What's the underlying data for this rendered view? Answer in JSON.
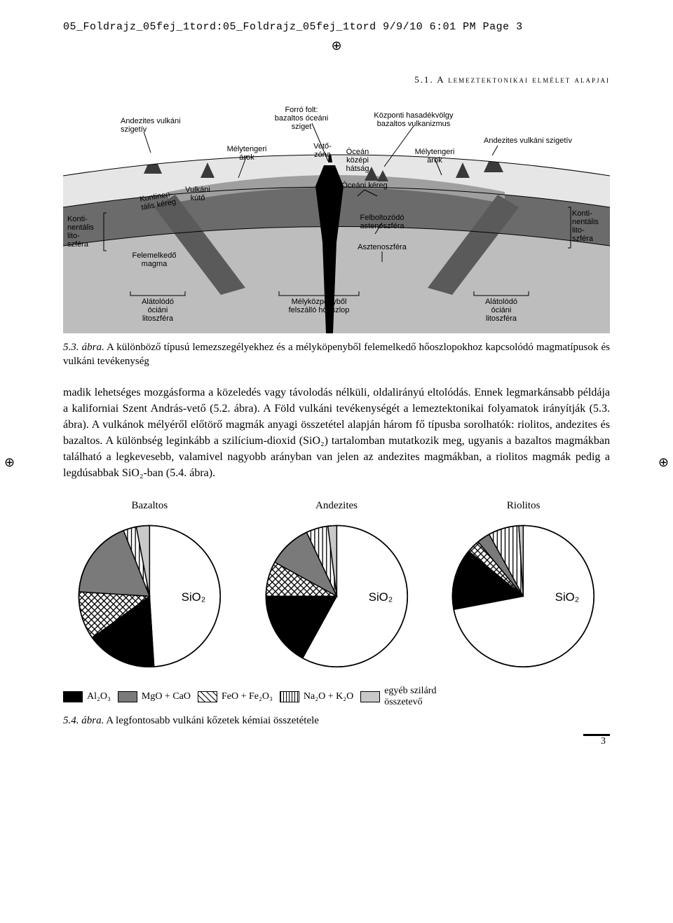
{
  "print_header": "05_Foldrajz_05fej_1tord:05_Foldrajz_05fej_1tord  9/9/10  6:01 PM  Page 3",
  "chapter_head": "5.1. A lemeztektonikai elmélet alapjai",
  "fig53": {
    "type": "labeled-diagram",
    "background_color": "#ffffff",
    "crust_cont_color": "#8d8d8d",
    "crust_ocean_color": "#9f9f9f",
    "mantle_upper_color": "#5a5a5a",
    "astheno_color": "#bdbdbd",
    "surface_color": "#e6e6e6",
    "water_color": "#dedede",
    "plume_color": "#000000",
    "label_color": "#000000",
    "label_fontsize": 11,
    "labels": {
      "andesitic_arc_left": "Andezites vulkáni\nszigetív",
      "cont_lith_left": "Konti-\nnentális\nlito-\nszféra",
      "cont_crust": "Kontinen-\ntális kéreg",
      "volc_cone": "Vulkáni\nkútő",
      "rising_magma": "Felemelkedő\nmagma",
      "hotspot": "Forró folt:\nbazaltos óceáni\nsziget",
      "trench_left": "Mélytengeri\nárok",
      "fault_zone": "Vető-\nzóna",
      "mor": "Óceán\nközépi\nhátság",
      "ocean_crust": "Óceáni kéreg",
      "rift": "Központi hasadékvölgy\nbazaltos vulkanizmus",
      "trench_right": "Mélytengeri\nárok",
      "andesitic_arc_right": "Andezites vulkáni szigetív",
      "upwelling_asth": "Felboltozódó\nastenoszféra",
      "asthenosphere": "Asztenoszféra",
      "cont_lith_right": "Konti-\nnentális\nlito-\nszféra",
      "subducting_left": "Alátolódó\nóciáni\nlitoszféra",
      "plume_col": "Mélyközpenyből\nfelszálló hőoszlop",
      "subducting_right": "Alátolódó\nóciáni\nlitoszféra"
    }
  },
  "caption53": {
    "num": "5.3. ábra.",
    "text": " A különböző típusú lemezszegélyekhez és a mélyköpenyből felemelkedő hőoszlopokhoz kapcsolódó magmatípusok és vulkáni tevékenység"
  },
  "body": "madik lehetséges mozgásforma a közeledés vagy távolodás nélküli, oldalirányú eltolódás. Ennek legmarkánsabb példája a kaliforniai Szent András-vető (5.2. ábra). A Föld vulkáni tevékenységét a lemeztektonikai folyamatok irányítják (5.3. ábra). A vulkánok mélyéről előtörő magmák anyagi összetétel alapján három fő típusba sorolhatók: riolitos, andezites és bazaltos. A különbség leginkább a szilícium-dioxid (SiO₂) tartalomban mutatkozik meg, ugyanis a bazaltos magmákban található a legkevesebb, valamivel nagyobb arányban van jelen az andezites magmákban, a riolitos magmák pedig a legdúsabbak SiO₂-ban (5.4. ábra).",
  "pies": {
    "type": "pie",
    "stroke": "#000000",
    "radius": 90,
    "titles": [
      "Bazaltos",
      "Andezites",
      "Riolitos"
    ],
    "center_label": "SiO₂",
    "colors": {
      "SiO2": "#ffffff",
      "Al2O3": "#000000",
      "MgO_CaO": "#7a7a7a",
      "FeOx": "hatch_x",
      "Na2O_K2O": "hatch_v",
      "other": "#c8c8c8"
    },
    "series": [
      {
        "name": "Bazaltos",
        "start_deg": -90,
        "slices": [
          {
            "k": "SiO2",
            "v": 49
          },
          {
            "k": "Al2O3",
            "v": 16
          },
          {
            "k": "FeOx",
            "v": 11
          },
          {
            "k": "MgO_CaO",
            "v": 18
          },
          {
            "k": "Na2O_K2O",
            "v": 3
          },
          {
            "k": "other",
            "v": 3
          }
        ]
      },
      {
        "name": "Andezites",
        "start_deg": -90,
        "slices": [
          {
            "k": "SiO2",
            "v": 58
          },
          {
            "k": "Al2O3",
            "v": 17
          },
          {
            "k": "FeOx",
            "v": 8
          },
          {
            "k": "MgO_CaO",
            "v": 10
          },
          {
            "k": "Na2O_K2O",
            "v": 5
          },
          {
            "k": "other",
            "v": 2
          }
        ]
      },
      {
        "name": "Riolitos",
        "start_deg": -90,
        "slices": [
          {
            "k": "SiO2",
            "v": 72
          },
          {
            "k": "Al2O3",
            "v": 14
          },
          {
            "k": "FeOx",
            "v": 3
          },
          {
            "k": "MgO_CaO",
            "v": 3
          },
          {
            "k": "Na2O_K2O",
            "v": 7
          },
          {
            "k": "other",
            "v": 1
          }
        ]
      }
    ]
  },
  "legend": [
    {
      "key": "Al2O3",
      "label": "Al₂O₃"
    },
    {
      "key": "MgO_CaO",
      "label": "MgO + CaO"
    },
    {
      "key": "FeOx",
      "label": "FeO + Fe₂O₃"
    },
    {
      "key": "Na2O_K2O",
      "label": "Na₂O + K₂O"
    },
    {
      "key": "other",
      "label": "egyéb szilárd\nösszetevő"
    }
  ],
  "caption54": {
    "num": "5.4. ábra.",
    "text": " A legfontosabb vulkáni kőzetek kémiai összetétele"
  },
  "page_number": "3",
  "crop_glyph": "⊕"
}
